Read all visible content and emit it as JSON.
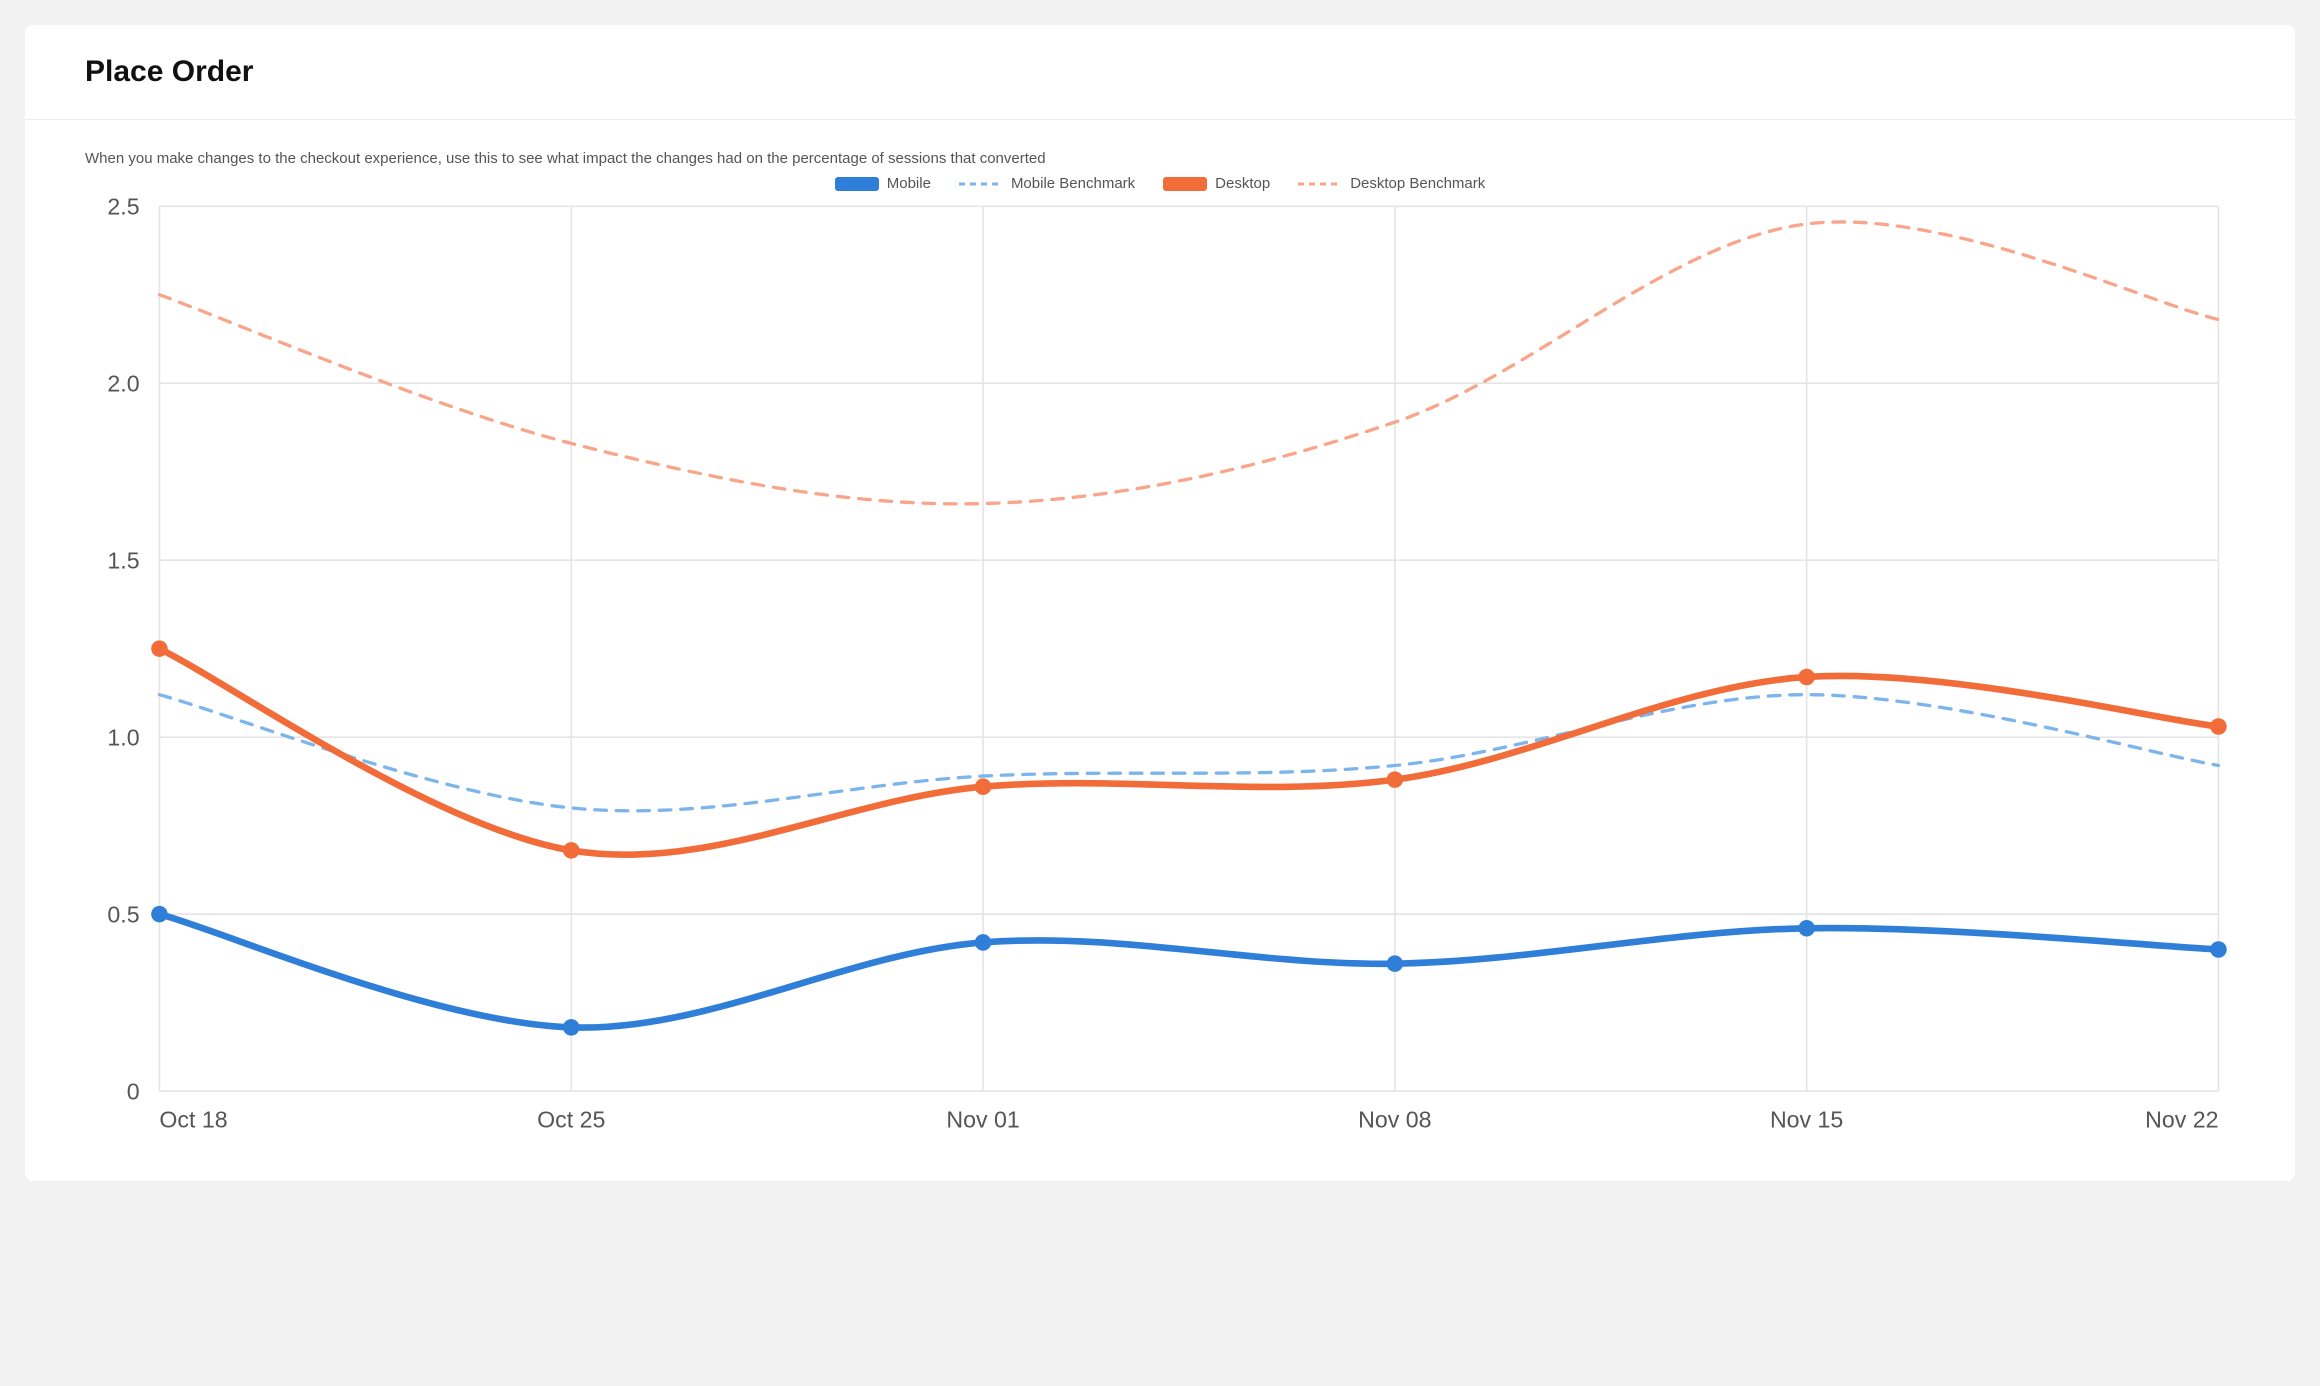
{
  "page": {
    "background_color": "#f2f2f2",
    "card_background": "#ffffff"
  },
  "header": {
    "title": "Place Order",
    "title_fontsize": 30,
    "title_color": "#111111"
  },
  "chart": {
    "type": "line",
    "subtitle": "When you make changes to the checkout experience, use this to see what impact the changes had on the percentage of sessions that converted",
    "subtitle_fontsize": 15,
    "subtitle_color": "#555555",
    "grid_color": "#e5e5e5",
    "background_color": "#ffffff",
    "x_categories": [
      "Oct 18",
      "Oct 25",
      "Nov 01",
      "Nov 08",
      "Nov 15",
      "Nov 22"
    ],
    "ylim": [
      0,
      2.5
    ],
    "ytick_step": 0.5,
    "yticks": [
      "0",
      "0.5",
      "1.0",
      "1.5",
      "2.0",
      "2.5"
    ],
    "axis_label_fontsize": 14,
    "axis_label_color": "#555555",
    "marker_radius": 5,
    "line_width_solid": 4,
    "line_width_dashed": 2,
    "legend": {
      "items": [
        {
          "key": "mobile",
          "label": "Mobile",
          "color": "#2f7ed8",
          "style": "solid"
        },
        {
          "key": "mobile_benchmark",
          "label": "Mobile Benchmark",
          "color": "#7cb5ec",
          "style": "dashed"
        },
        {
          "key": "desktop",
          "label": "Desktop",
          "color": "#f26c3a",
          "style": "solid"
        },
        {
          "key": "desktop_benchmark",
          "label": "Desktop Benchmark",
          "color": "#f9a58a",
          "style": "dashed"
        }
      ]
    },
    "series": {
      "mobile": {
        "color": "#2f7ed8",
        "style": "solid",
        "dash": "",
        "markers": true,
        "smooth": true,
        "values": [
          0.5,
          0.18,
          0.42,
          0.36,
          0.46,
          0.4
        ]
      },
      "mobile_benchmark": {
        "color": "#7cb5ec",
        "style": "dashed",
        "dash": "7,6",
        "markers": false,
        "smooth": true,
        "values": [
          1.12,
          0.8,
          0.89,
          0.92,
          1.12,
          0.92
        ]
      },
      "desktop": {
        "color": "#f26c3a",
        "style": "solid",
        "dash": "",
        "markers": true,
        "smooth": true,
        "values": [
          1.25,
          0.68,
          0.86,
          0.88,
          1.17,
          1.03
        ]
      },
      "desktop_benchmark": {
        "color": "#f9a58a",
        "style": "dashed",
        "dash": "7,6",
        "markers": false,
        "smooth": true,
        "values": [
          2.25,
          1.83,
          1.66,
          1.89,
          2.45,
          2.18
        ]
      }
    }
  }
}
